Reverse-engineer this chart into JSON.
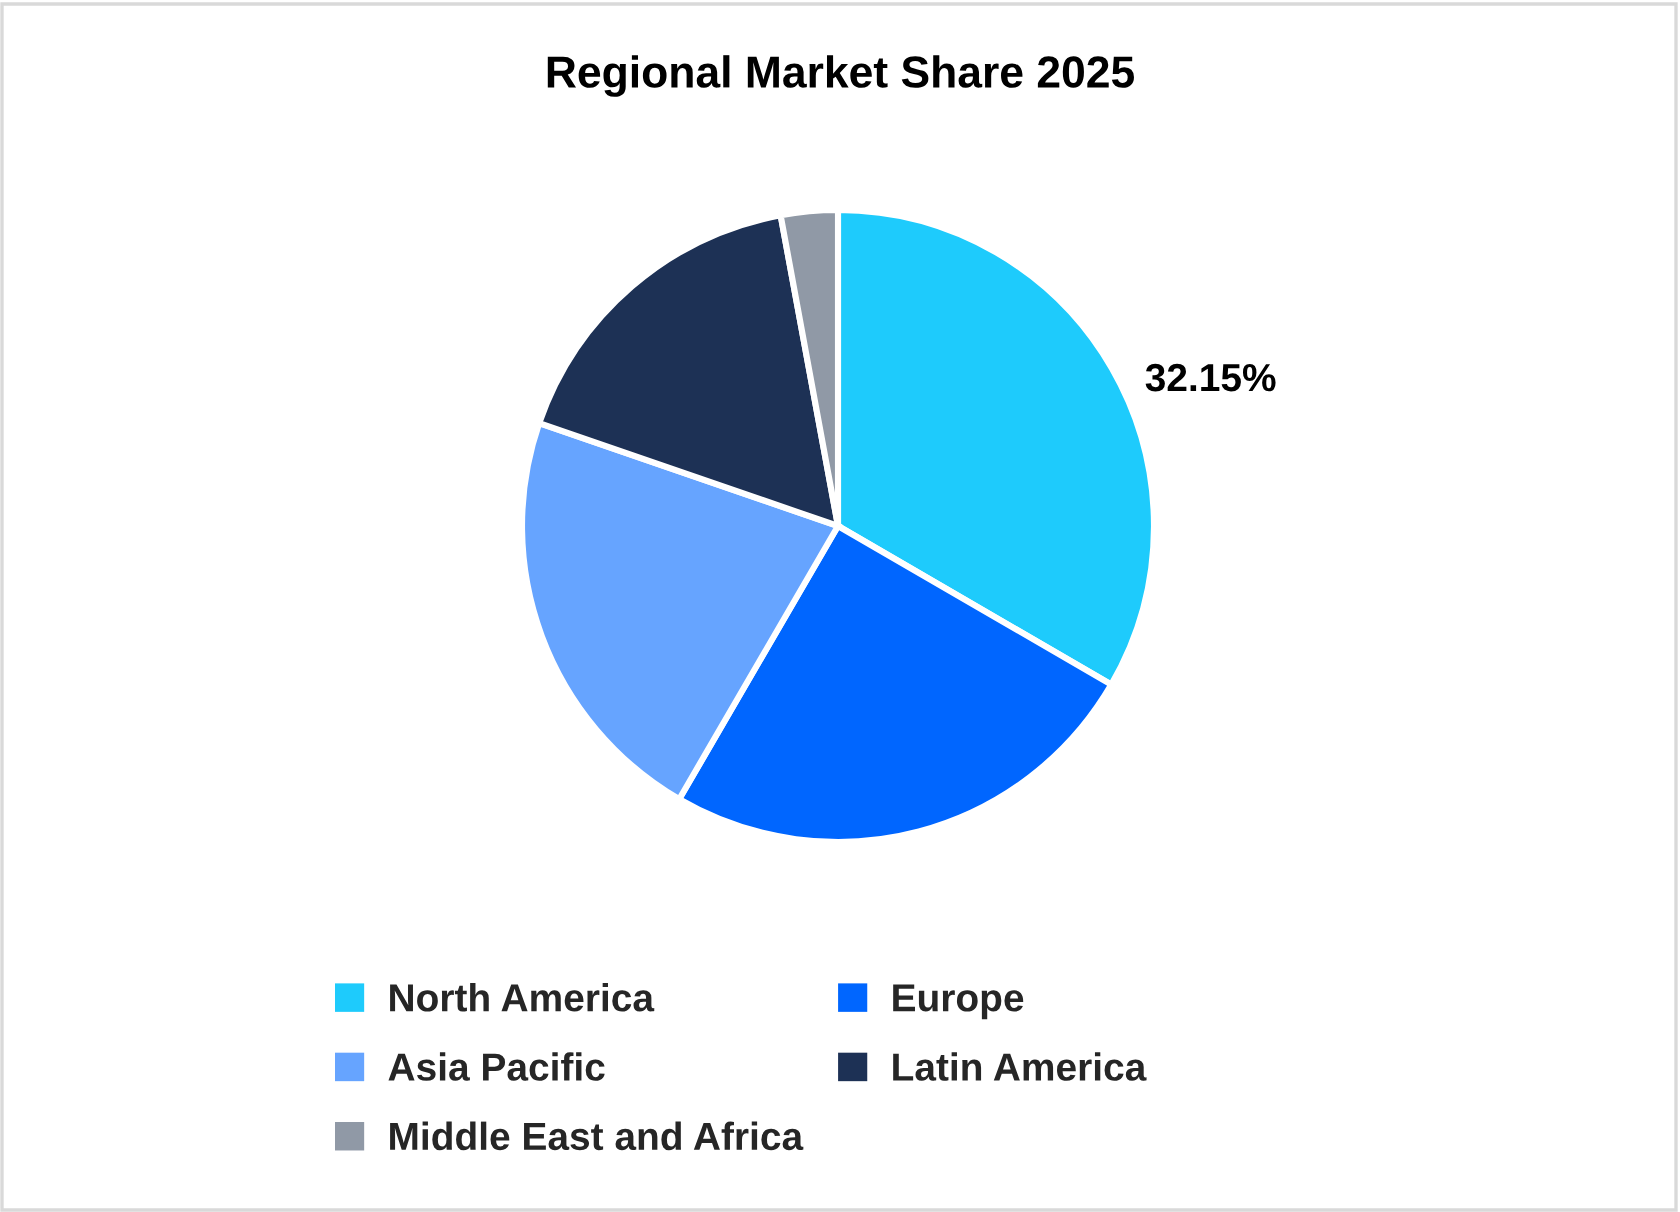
{
  "chart_data": {
    "type": "pie",
    "title": "Regional Market Share 2025",
    "categories": [
      "North America",
      "Europe",
      "Asia Pacific",
      "Latin America",
      "Middle East and Africa"
    ],
    "values": [
      32.15,
      24.1,
      21.1,
      16.2,
      2.8
    ],
    "colors": [
      "#1ecbfc",
      "#0066ff",
      "#66a4ff",
      "#1d3155",
      "#9099a6"
    ],
    "value_labels": [
      "32.15%",
      null,
      null,
      null,
      null
    ],
    "legend": "bottom"
  }
}
